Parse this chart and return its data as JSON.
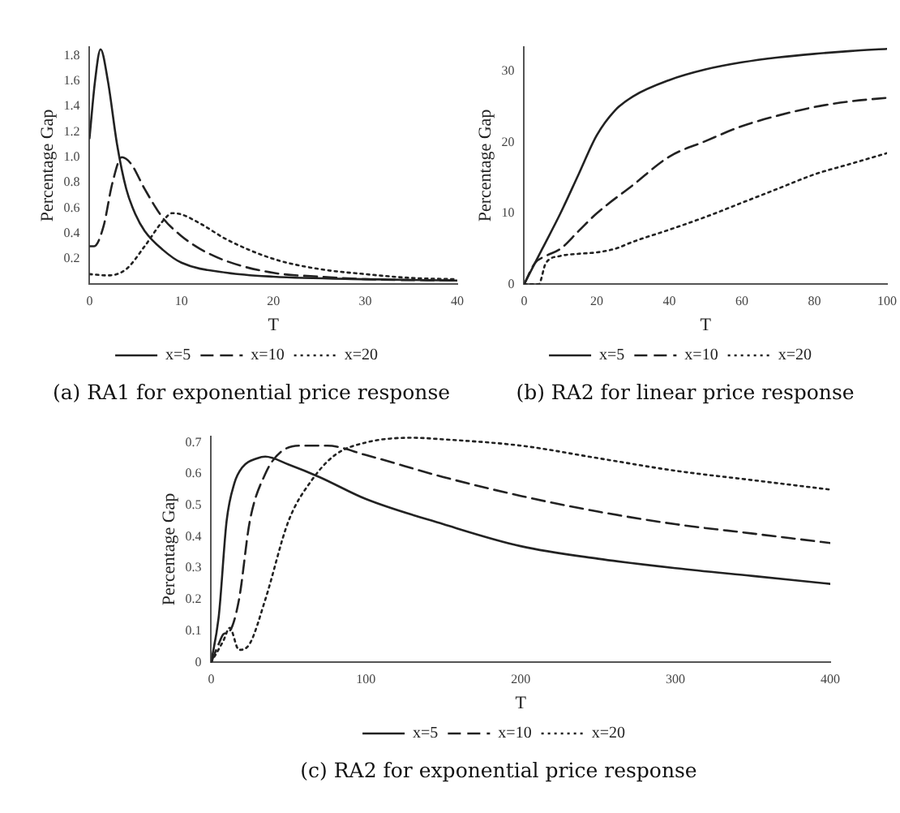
{
  "chart_data": [
    {
      "type": "line",
      "title": "(a) RA1 for exponential price response",
      "xlabel": "T",
      "ylabel": "Percentage Gap",
      "xlim": [
        0,
        40
      ],
      "xticks": [
        0,
        10,
        20,
        30,
        40
      ],
      "ylim": [
        0,
        1.87
      ],
      "yticks": [
        {
          "value": 0.2,
          "label": "0.2"
        },
        {
          "value": 0.4,
          "label": "0.4"
        },
        {
          "value": 0.6,
          "label": "0.6"
        },
        {
          "value": 0.8,
          "label": "0.8"
        },
        {
          "value": 1,
          "label": "1.0"
        },
        {
          "value": 1.2,
          "label": "1.2"
        },
        {
          "value": 1.4,
          "label": "1.4"
        },
        {
          "value": 1.6,
          "label": "1.6"
        },
        {
          "value": 1.8,
          "label": "1.8"
        }
      ],
      "grid": false,
      "legend": "bottom",
      "marker": "none",
      "series": [
        {
          "name": "x=5",
          "color": "#222222",
          "line_style": "solid",
          "x": [
            0,
            0.6,
            1.2,
            2,
            3,
            4,
            5,
            6,
            8,
            10,
            15,
            20,
            30,
            40
          ],
          "values": [
            1.15,
            1.6,
            1.85,
            1.6,
            1.1,
            0.75,
            0.55,
            0.42,
            0.27,
            0.17,
            0.09,
            0.06,
            0.04,
            0.03
          ]
        },
        {
          "name": "x=10",
          "color": "#222222",
          "line_style": "dashed",
          "x": [
            0,
            0.5,
            1.5,
            2.5,
            3.5,
            4.5,
            6,
            8,
            10,
            12,
            15,
            20,
            25,
            30,
            40
          ],
          "values": [
            0.3,
            0.3,
            0.45,
            0.8,
            1.0,
            0.95,
            0.75,
            0.52,
            0.38,
            0.28,
            0.18,
            0.09,
            0.06,
            0.04,
            0.03
          ]
        },
        {
          "name": "x=20",
          "color": "#222222",
          "line_style": "dotted",
          "x": [
            0,
            2,
            4,
            6,
            8,
            9,
            10,
            12,
            15,
            20,
            25,
            30,
            35,
            40
          ],
          "values": [
            0.08,
            0.07,
            0.12,
            0.3,
            0.5,
            0.56,
            0.55,
            0.48,
            0.35,
            0.2,
            0.12,
            0.08,
            0.05,
            0.04
          ]
        }
      ]
    },
    {
      "type": "line",
      "title": "(b) RA2 for linear price response",
      "xlabel": "T",
      "ylabel": "Percentage Gap",
      "xlim": [
        0,
        100
      ],
      "xticks": [
        0,
        20,
        40,
        60,
        80,
        100
      ],
      "ylim": [
        0,
        33.5
      ],
      "yticks": [
        0,
        10,
        20,
        30
      ],
      "grid": false,
      "legend": "bottom",
      "marker": "none",
      "series": [
        {
          "name": "x=5",
          "color": "#222222",
          "line_style": "solid",
          "x": [
            0,
            2,
            5,
            10,
            15,
            20,
            25,
            30,
            40,
            50,
            60,
            70,
            80,
            90,
            100
          ],
          "values": [
            0,
            2,
            5,
            10,
            15.5,
            21,
            24.5,
            26.5,
            28.8,
            30.3,
            31.3,
            32,
            32.5,
            32.9,
            33.2
          ]
        },
        {
          "name": "x=10",
          "color": "#222222",
          "line_style": "dashed",
          "x": [
            0,
            3,
            6,
            10,
            15,
            20,
            30,
            40,
            50,
            60,
            70,
            80,
            90,
            100
          ],
          "values": [
            0,
            3,
            4,
            5,
            7.5,
            10,
            14,
            18,
            20.2,
            22.3,
            23.8,
            25,
            25.8,
            26.3
          ]
        },
        {
          "name": "x=20",
          "color": "#222222",
          "line_style": "dotted",
          "x": [
            0,
            4,
            6,
            10,
            15,
            20,
            25,
            30,
            40,
            50,
            60,
            70,
            80,
            90,
            100
          ],
          "values": [
            0,
            0,
            3,
            4,
            4.3,
            4.5,
            5,
            6,
            7.7,
            9.5,
            11.5,
            13.5,
            15.5,
            17,
            18.5
          ]
        }
      ]
    },
    {
      "type": "line",
      "title": "(c) RA2 for exponential price response",
      "xlabel": "T",
      "ylabel": "Percentage Gap",
      "xlim": [
        0,
        400
      ],
      "xticks": [
        0,
        100,
        200,
        300,
        400
      ],
      "ylim": [
        0,
        0.72
      ],
      "yticks": [
        0,
        0.1,
        0.2,
        0.3,
        0.4,
        0.5,
        0.6,
        0.7
      ],
      "grid": false,
      "legend": "bottom",
      "marker": "none",
      "series": [
        {
          "name": "x=5",
          "color": "#222222",
          "line_style": "solid",
          "x": [
            0,
            5,
            10,
            15,
            20,
            30,
            35,
            50,
            70,
            100,
            150,
            200,
            250,
            300,
            350,
            400
          ],
          "values": [
            0,
            0.15,
            0.45,
            0.57,
            0.62,
            0.65,
            0.655,
            0.63,
            0.59,
            0.52,
            0.44,
            0.37,
            0.33,
            0.3,
            0.275,
            0.25
          ]
        },
        {
          "name": "x=10",
          "color": "#222222",
          "line_style": "dashed",
          "x": [
            0,
            5,
            8,
            12,
            18,
            25,
            35,
            45,
            60,
            75,
            100,
            150,
            200,
            250,
            300,
            350,
            400
          ],
          "values": [
            0,
            0.06,
            0.09,
            0.1,
            0.2,
            0.45,
            0.6,
            0.67,
            0.69,
            0.69,
            0.66,
            0.59,
            0.53,
            0.48,
            0.44,
            0.41,
            0.38
          ]
        },
        {
          "name": "x=20",
          "color": "#222222",
          "line_style": "dotted",
          "x": [
            0,
            8,
            12,
            18,
            25,
            35,
            50,
            65,
            80,
            100,
            130,
            150,
            200,
            250,
            300,
            350,
            400
          ],
          "values": [
            0,
            0.07,
            0.11,
            0.04,
            0.06,
            0.2,
            0.45,
            0.58,
            0.66,
            0.7,
            0.715,
            0.71,
            0.69,
            0.65,
            0.61,
            0.58,
            0.55
          ]
        }
      ]
    }
  ]
}
